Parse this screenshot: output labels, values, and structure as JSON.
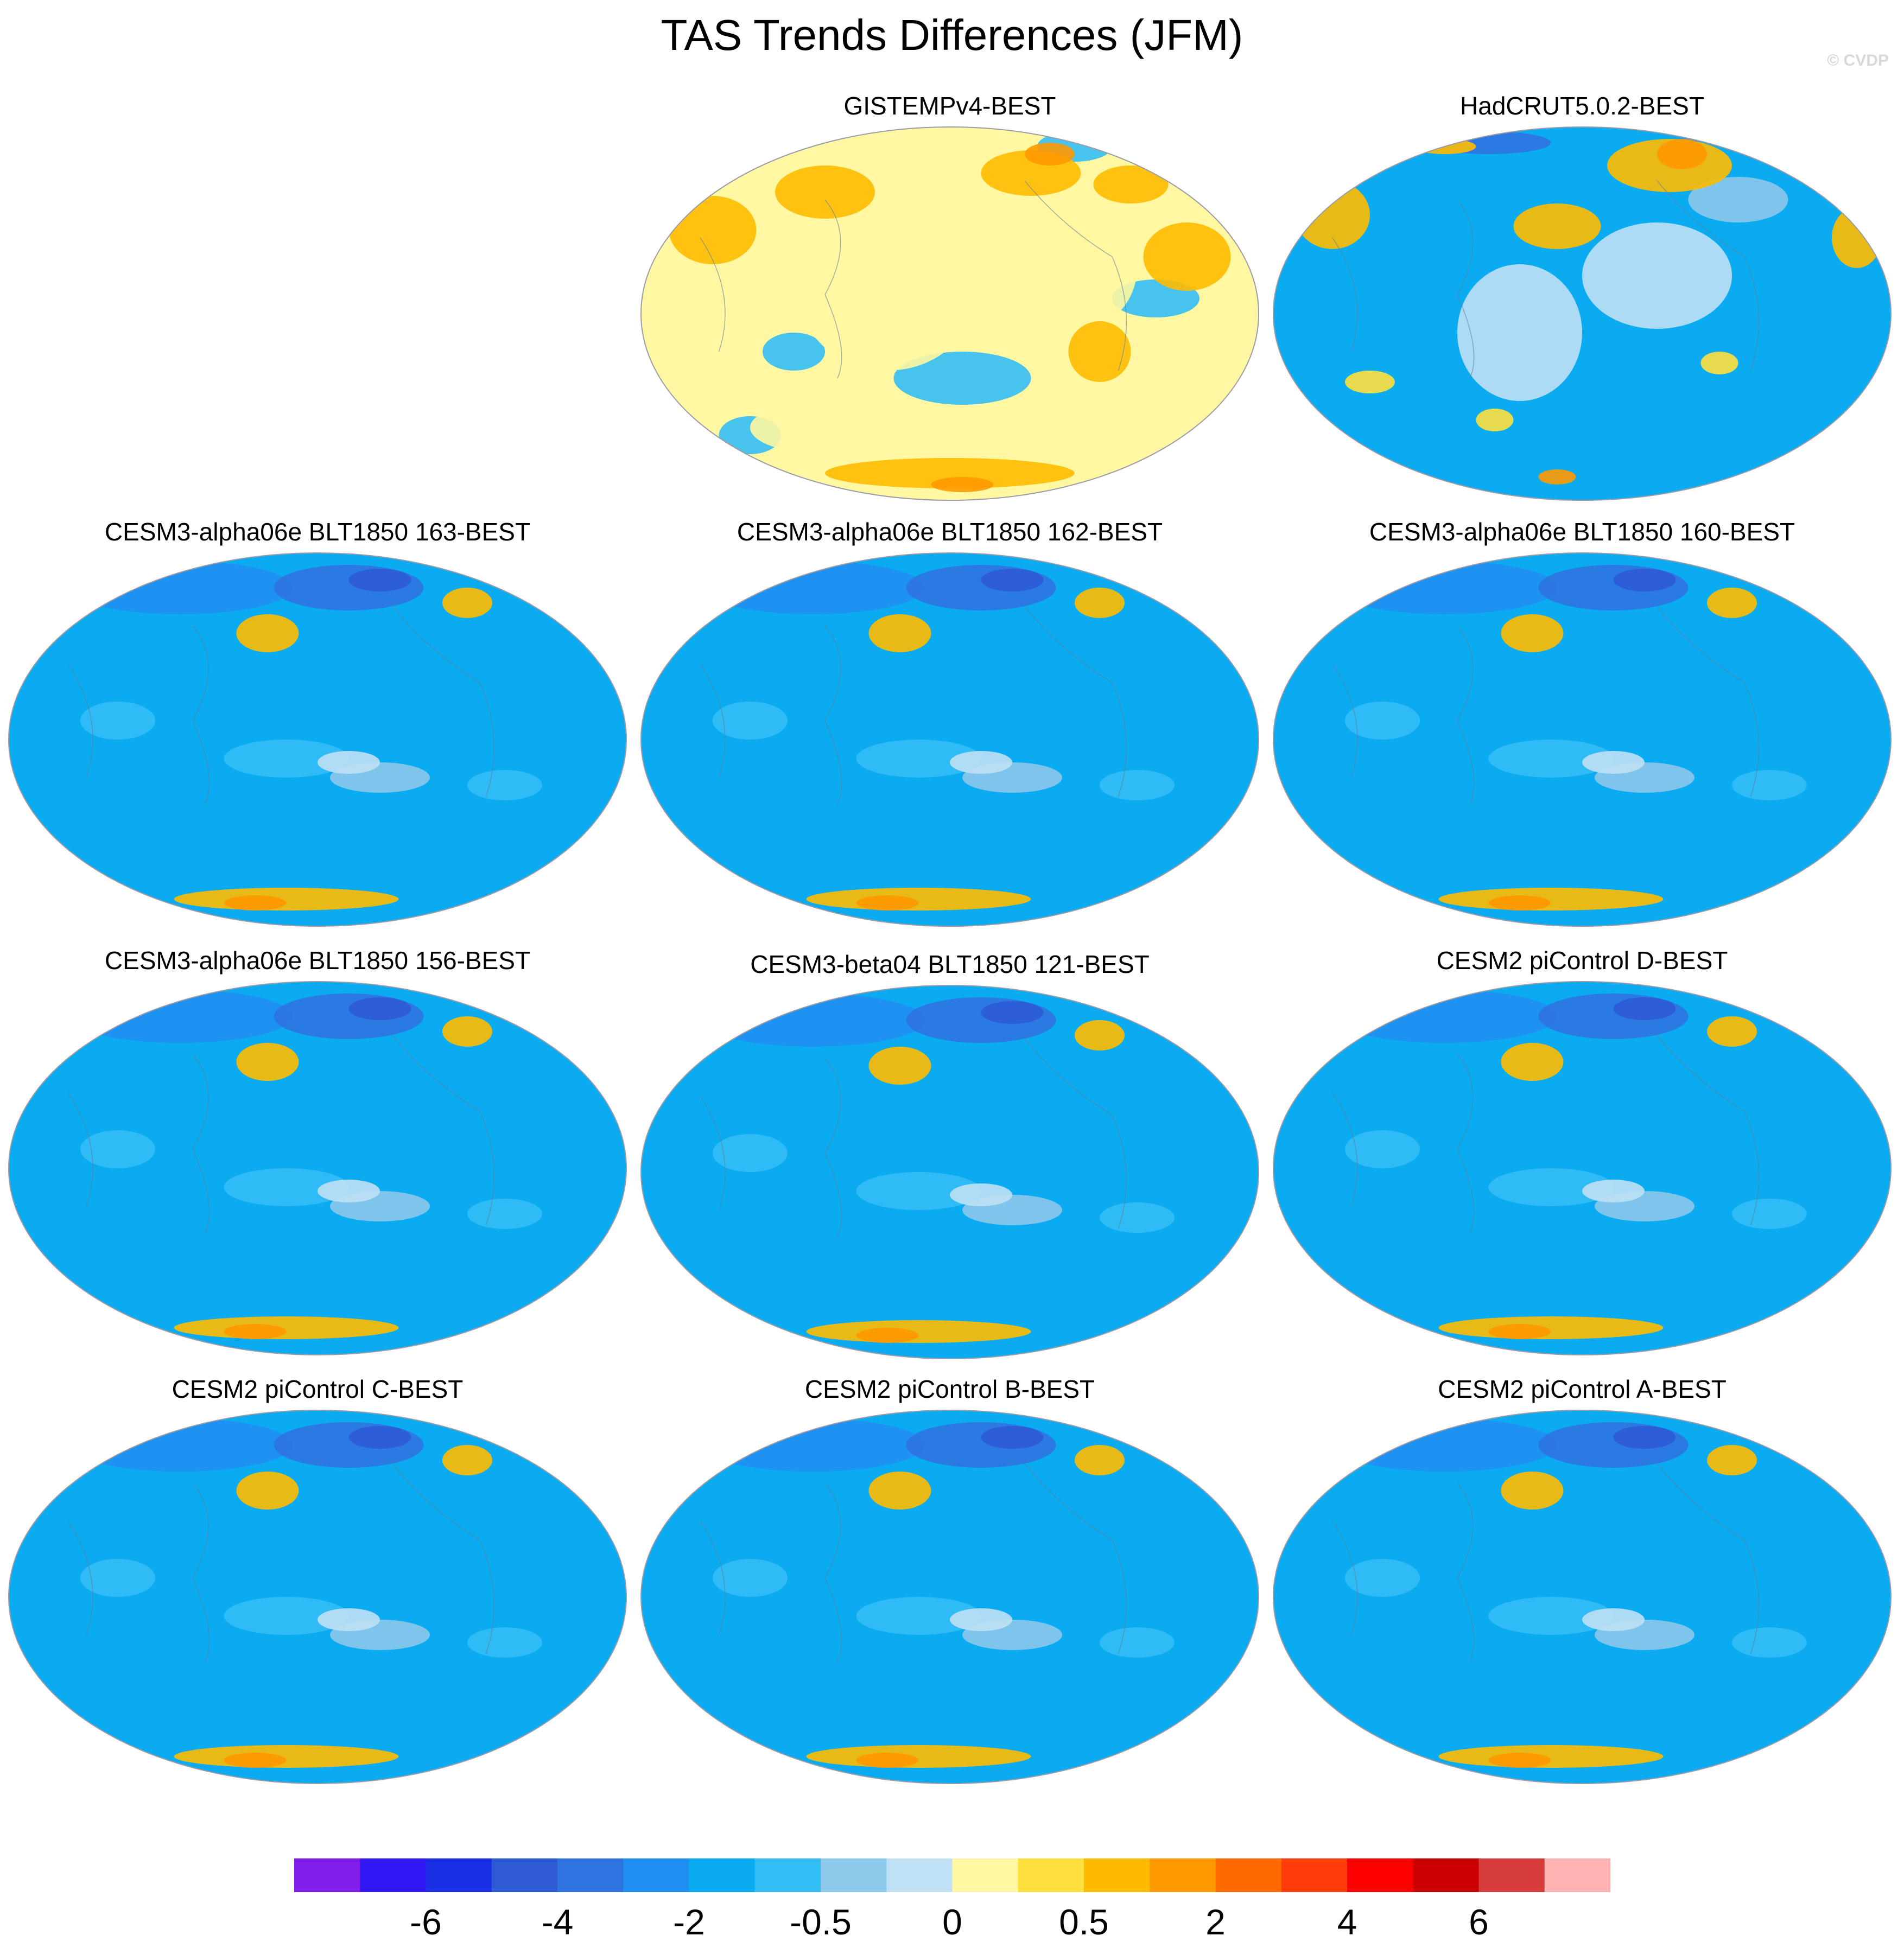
{
  "header": {
    "title": "TAS Trends Differences (JFM)",
    "credit": "© CVDP"
  },
  "panels": [
    {
      "title": "GISTEMPv4-BEST",
      "scheme": "warm",
      "blobs": []
    },
    {
      "title": "HadCRUT5.0.2-BEST",
      "scheme": "mixed",
      "blobs": []
    },
    {
      "title": "CESM3-alpha06e BLT1850 163-BEST",
      "scheme": "cool",
      "blobs": []
    },
    {
      "title": "CESM3-alpha06e BLT1850 162-BEST",
      "scheme": "cool",
      "blobs": []
    },
    {
      "title": "CESM3-alpha06e BLT1850 160-BEST",
      "scheme": "cool",
      "blobs": []
    },
    {
      "title": "CESM3-alpha06e BLT1850 156-BEST",
      "scheme": "cool",
      "blobs": []
    },
    {
      "title": "CESM3-beta04 BLT1850 121-BEST",
      "scheme": "cool",
      "blobs": []
    },
    {
      "title": "CESM2 piControl D-BEST",
      "scheme": "cool",
      "blobs": []
    },
    {
      "title": "CESM2 piControl C-BEST",
      "scheme": "cool",
      "blobs": []
    },
    {
      "title": "CESM2 piControl B-BEST",
      "scheme": "cool",
      "blobs": []
    },
    {
      "title": "CESM2 piControl A-BEST",
      "scheme": "cool",
      "blobs": []
    }
  ],
  "chart_data": {
    "type": "heatmap",
    "title": "TAS Trends Differences (JFM)",
    "projection": "Robinson (global)",
    "colorbar": {
      "colors": [
        "#7f1ee8",
        "#3318f5",
        "#1a2ee6",
        "#2e5ad6",
        "#2f73e0",
        "#1f8ff2",
        "#0aabf0",
        "#33bdf5",
        "#8cc8ea",
        "#bfe0f5",
        "#fff7a1",
        "#ffdf3d",
        "#ffbb00",
        "#ff9900",
        "#ff6a00",
        "#ff3c0a",
        "#ff0000",
        "#cc0000",
        "#d63c3c",
        "#ffb3b3"
      ],
      "tick_labels": [
        "-6",
        "-4",
        "-2",
        "-0.5",
        "0",
        "0.5",
        "2",
        "4",
        "6"
      ],
      "tick_boundary_index": [
        2,
        4,
        6,
        8,
        10,
        12,
        14,
        16,
        18
      ]
    },
    "panels": [
      "GISTEMPv4-BEST",
      "HadCRUT5.0.2-BEST",
      "CESM3-alpha06e BLT1850 163-BEST",
      "CESM3-alpha06e BLT1850 162-BEST",
      "CESM3-alpha06e BLT1850 160-BEST",
      "CESM3-alpha06e BLT1850 156-BEST",
      "CESM3-beta04 BLT1850 121-BEST",
      "CESM2 piControl D-BEST",
      "CESM2 piControl C-BEST",
      "CESM2 piControl B-BEST",
      "CESM2 piControl A-BEST"
    ]
  }
}
